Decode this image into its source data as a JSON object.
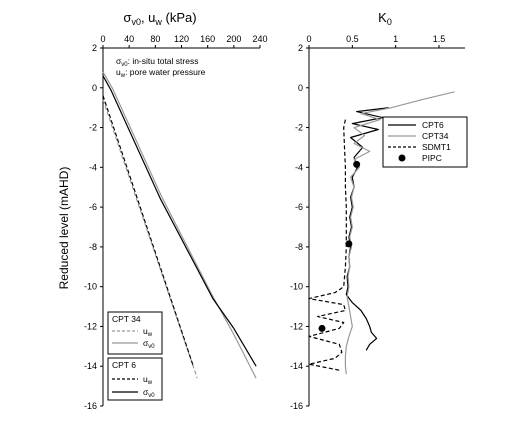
{
  "chart_data": [
    {
      "type": "line",
      "title": "σv0, uw (kPa)",
      "title_parts": {
        "sigma": "σ",
        "sigma_sub": "v0",
        "sep": ", u",
        "u_sub": "w",
        "unit": " (kPa)"
      },
      "ylabel": "Reduced level (mAHD)",
      "x_axis_position": "top",
      "xlim": [
        0,
        240
      ],
      "ylim": [
        -16,
        2
      ],
      "x_ticks": [
        0,
        40,
        80,
        120,
        160,
        200,
        240
      ],
      "y_ticks": [
        2,
        0,
        -2,
        -4,
        -6,
        -8,
        -10,
        -12,
        -14,
        -16
      ],
      "annotation": {
        "line1": {
          "sym": "σ",
          "sub": "v0",
          "text": ": in-situ total stress"
        },
        "line2": {
          "sym": "u",
          "sub": "w",
          "text": ": pore water pressure"
        }
      },
      "series": [
        {
          "name": "CPT 34 uw",
          "color": "#999999",
          "dash": "dashed",
          "x": [
            0,
            144
          ],
          "y": [
            -0.6,
            -14.6
          ]
        },
        {
          "name": "CPT 34 σv0",
          "color": "#999999",
          "dash": "solid",
          "x": [
            0,
            14,
            90,
            168,
            200,
            234
          ],
          "y": [
            0.8,
            0,
            -5.5,
            -10.5,
            -12.4,
            -14.6
          ]
        },
        {
          "name": "CPT 6 uw",
          "color": "#000000",
          "dash": "dashed",
          "x": [
            0,
            138
          ],
          "y": [
            -0.4,
            -14
          ]
        },
        {
          "name": "CPT 6 σv0",
          "color": "#000000",
          "dash": "solid",
          "x": [
            0,
            12,
            88,
            168,
            200,
            234
          ],
          "y": [
            0.6,
            -0.1,
            -5.6,
            -10.6,
            -12.1,
            -14
          ]
        }
      ],
      "legends": [
        {
          "title": "CPT 34",
          "entries": [
            {
              "sym": "u",
              "sub": "w",
              "color": "#999999",
              "dash": "dashed"
            },
            {
              "sym": "σ",
              "sub": "v0",
              "color": "#999999",
              "dash": "solid"
            }
          ]
        },
        {
          "title": "CPT 6",
          "entries": [
            {
              "sym": "u",
              "sub": "w",
              "color": "#000000",
              "dash": "dashed"
            },
            {
              "sym": "σ",
              "sub": "v0",
              "color": "#000000",
              "dash": "solid"
            }
          ]
        }
      ]
    },
    {
      "type": "line",
      "title": "K0",
      "title_parts": {
        "base": "K",
        "sub": "0"
      },
      "ylabel": "",
      "x_axis_position": "top",
      "xlim": [
        0,
        1.8
      ],
      "ylim": [
        -16,
        2
      ],
      "x_ticks": [
        "0",
        "0.5",
        "1",
        "1.5"
      ],
      "x_tick_values": [
        0,
        0.5,
        1,
        1.5
      ],
      "y_ticks": [
        2,
        0,
        -2,
        -4,
        -6,
        -8,
        -10,
        -12,
        -14,
        -16
      ],
      "legend_position": "top-right",
      "series": [
        {
          "name": "CPT6",
          "color": "#000000",
          "dash": "solid",
          "y": [
            -1.0,
            -1.2,
            -1.5,
            -1.8,
            -2.1,
            -2.5,
            -3.0,
            -3.5,
            -4.0,
            -4.5,
            -5.0,
            -5.5,
            -6.0,
            -6.5,
            -7.0,
            -7.5,
            -8.0,
            -8.5,
            -9.0,
            -9.5,
            -10.0,
            -10.4,
            -10.8,
            -11.2,
            -11.6,
            -12.0,
            -12.3,
            -12.6,
            -12.9,
            -13.2
          ],
          "x": [
            0.92,
            0.55,
            0.85,
            0.5,
            0.8,
            0.48,
            0.62,
            0.52,
            0.56,
            0.5,
            0.52,
            0.48,
            0.5,
            0.47,
            0.49,
            0.46,
            0.48,
            0.46,
            0.47,
            0.44,
            0.45,
            0.43,
            0.5,
            0.6,
            0.66,
            0.7,
            0.72,
            0.78,
            0.7,
            0.66
          ]
        },
        {
          "name": "CPT34",
          "color": "#999999",
          "dash": "solid",
          "y": [
            -0.2,
            -0.6,
            -1.0,
            -1.3,
            -1.6,
            -2.0,
            -2.4,
            -2.8,
            -3.2,
            -3.6,
            -4.0,
            -4.5,
            -5.0,
            -5.5,
            -6.0,
            -6.5,
            -7.0,
            -7.5,
            -8.0,
            -8.5,
            -9.0,
            -9.5,
            -10.0,
            -10.5,
            -11.0,
            -11.5,
            -12.0,
            -12.5,
            -13.0,
            -13.5,
            -14.0,
            -14.4
          ],
          "x": [
            1.68,
            1.3,
            0.95,
            0.6,
            0.82,
            0.52,
            0.64,
            0.52,
            0.7,
            0.52,
            0.58,
            0.48,
            0.52,
            0.49,
            0.51,
            0.48,
            0.5,
            0.47,
            0.49,
            0.46,
            0.47,
            0.45,
            0.46,
            0.44,
            0.46,
            0.48,
            0.5,
            0.46,
            0.43,
            0.42,
            0.42,
            0.43
          ]
        },
        {
          "name": "SDMT1",
          "color": "#000000",
          "dash": "dashed",
          "y": [
            -1.6,
            -2.0,
            -3.0,
            -4.0,
            -5.0,
            -6.0,
            -7.0,
            -8.0,
            -9.0,
            -10.0,
            -10.3,
            -10.6,
            -10.9,
            -11.2,
            -11.5,
            -11.8,
            -12.1,
            -12.5,
            -12.9,
            -13.3,
            -13.6,
            -13.9,
            -14.2
          ],
          "x": [
            0.42,
            0.4,
            0.41,
            0.42,
            0.42,
            0.43,
            0.43,
            0.43,
            0.42,
            0.4,
            0.3,
            0.0,
            0.4,
            0.42,
            0.1,
            0.4,
            0.35,
            0.0,
            0.35,
            0.38,
            0.3,
            0.0,
            0.35
          ]
        },
        {
          "name": "PIPC",
          "color": "#000000",
          "marker": "circle",
          "x": [
            0.55,
            0.46,
            0.15
          ],
          "y": [
            -3.85,
            -7.85,
            -12.1
          ]
        }
      ]
    }
  ]
}
